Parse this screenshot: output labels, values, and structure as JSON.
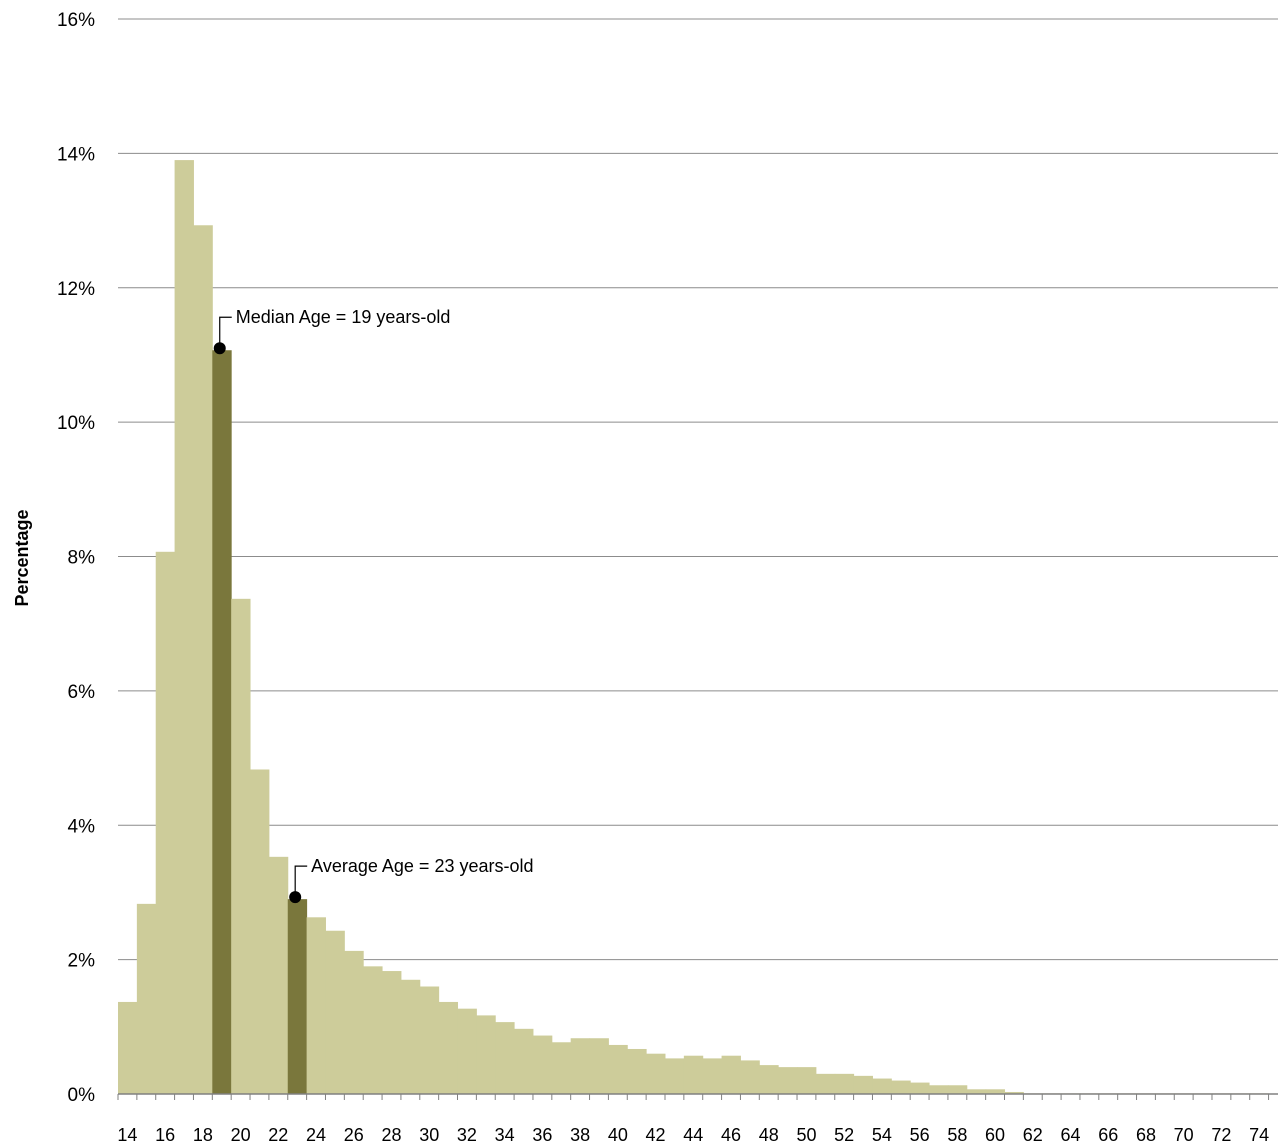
{
  "chart_data": {
    "type": "bar",
    "title": "",
    "xlabel": "",
    "ylabel": "Percentage",
    "ylim": [
      0,
      16
    ],
    "y_ticks": [
      "0%",
      "2%",
      "4%",
      "6%",
      "8%",
      "10%",
      "12%",
      "14%",
      "16%"
    ],
    "grid": true,
    "categories": [
      14,
      15,
      16,
      17,
      18,
      19,
      20,
      21,
      22,
      23,
      24,
      25,
      26,
      27,
      28,
      29,
      30,
      31,
      32,
      33,
      34,
      35,
      36,
      37,
      38,
      39,
      40,
      41,
      42,
      43,
      44,
      45,
      46,
      47,
      48,
      49,
      50,
      51,
      52,
      53,
      54,
      55,
      56,
      57,
      58,
      59,
      60,
      61,
      62,
      63,
      64,
      65,
      66,
      67,
      68,
      69,
      70,
      71,
      72,
      73,
      74
    ],
    "x_tick_labels": [
      "14",
      "16",
      "18",
      "20",
      "22",
      "24",
      "26",
      "28",
      "30",
      "32",
      "34",
      "36",
      "38",
      "40",
      "42",
      "44",
      "46",
      "48",
      "50",
      "52",
      "54",
      "56",
      "58",
      "60",
      "62",
      "64",
      "66",
      "68",
      "70",
      "72",
      "74"
    ],
    "values": [
      1.37,
      2.83,
      8.07,
      13.9,
      12.93,
      11.07,
      7.37,
      4.83,
      3.53,
      2.9,
      2.63,
      2.43,
      2.13,
      1.9,
      1.83,
      1.7,
      1.6,
      1.37,
      1.27,
      1.17,
      1.07,
      0.97,
      0.87,
      0.77,
      0.83,
      0.83,
      0.73,
      0.67,
      0.6,
      0.53,
      0.57,
      0.53,
      0.57,
      0.5,
      0.43,
      0.4,
      0.4,
      0.3,
      0.3,
      0.27,
      0.23,
      0.2,
      0.17,
      0.13,
      0.13,
      0.07,
      0.07,
      0.03,
      0.01,
      0.01,
      0.01,
      0.01,
      0.01,
      0.01,
      0.01,
      0.01,
      0.01,
      0.01,
      0.01,
      0.01,
      0.01
    ],
    "highlighted": [
      19,
      23
    ],
    "colors": {
      "bar": "#cdcc9a",
      "highlight": "#7a773c",
      "grid": "#8c8c8c",
      "axis": "#808080"
    },
    "annotations": [
      {
        "text": "Median Age = 19 years-old",
        "x": 19,
        "y": 11.07
      },
      {
        "text": "Average Age = 23 years-old",
        "x": 23,
        "y": 2.9
      }
    ]
  }
}
